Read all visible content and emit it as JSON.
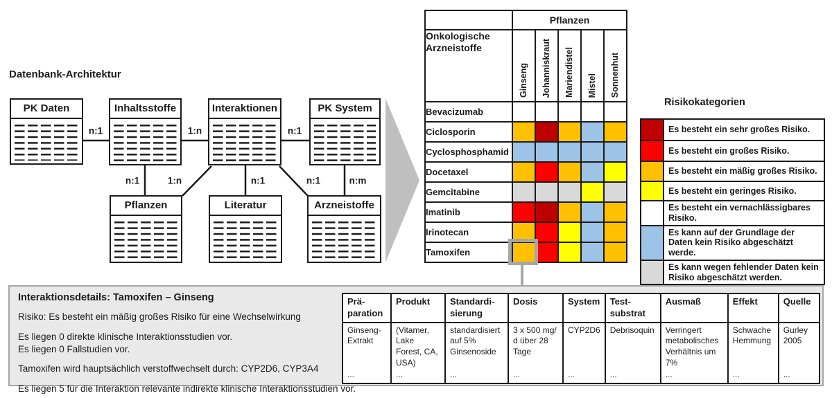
{
  "er_diagram": {
    "title": "Datenbank-Architektur",
    "entities": [
      {
        "id": "pk-daten",
        "label": "PK Daten"
      },
      {
        "id": "inhaltsstoffe",
        "label": "Inhaltsstoffe"
      },
      {
        "id": "interaktionen",
        "label": "Interaktionen"
      },
      {
        "id": "pk-system",
        "label": "PK System"
      },
      {
        "id": "pflanzen",
        "label": "Pflanzen"
      },
      {
        "id": "literatur",
        "label": "Literatur"
      },
      {
        "id": "arzneistoffe",
        "label": "Arzneistoffe"
      }
    ],
    "relations": [
      {
        "from": "PK Daten",
        "to": "Inhaltsstoffe",
        "cardinality": "n:1"
      },
      {
        "from": "Inhaltsstoffe",
        "to": "Interaktionen",
        "cardinality": "1:n"
      },
      {
        "from": "Interaktionen",
        "to": "PK System",
        "cardinality": "n:1"
      },
      {
        "from": "Inhaltsstoffe",
        "to": "Pflanzen",
        "cardinality": "n:1"
      },
      {
        "from": "Interaktionen",
        "to": "Pflanzen",
        "cardinality": "1:n"
      },
      {
        "from": "Interaktionen",
        "to": "Literatur",
        "cardinality": "n:1"
      },
      {
        "from": "Interaktionen",
        "to": "Arzneistoffe",
        "cardinality": "n:1"
      },
      {
        "from": "PK System",
        "to": "Arzneistoffe",
        "cardinality": "n:m"
      }
    ]
  },
  "risk_matrix": {
    "col_group_header": "Pflanzen",
    "row_group_header": "Onkologische Arzneistoffe",
    "columns": [
      "Ginseng",
      "Johanniskraut",
      "Mariendistel",
      "Mistel",
      "Sonnenhut"
    ],
    "rows": [
      {
        "drug": "Bevacizumab",
        "cells": [
          "white",
          "white",
          "white",
          "white",
          "white"
        ]
      },
      {
        "drug": "Ciclosporin",
        "cells": [
          "orange",
          "darkred",
          "orange",
          "blue",
          "orange"
        ]
      },
      {
        "drug": "Cyclosphosphamid",
        "cells": [
          "blue",
          "blue",
          "blue",
          "blue",
          "blue"
        ]
      },
      {
        "drug": "Docetaxel",
        "cells": [
          "orange",
          "red",
          "orange",
          "blue",
          "yellow"
        ]
      },
      {
        "drug": "Gemcitabine",
        "cells": [
          "gray",
          "gray",
          "gray",
          "yellow",
          "gray"
        ]
      },
      {
        "drug": "Imatinib",
        "cells": [
          "red",
          "darkred",
          "orange",
          "blue",
          "orange"
        ]
      },
      {
        "drug": "Irinotecan",
        "cells": [
          "orange",
          "red",
          "yellow",
          "blue",
          "orange"
        ]
      },
      {
        "drug": "Tamoxifen",
        "cells": [
          "orange",
          "red",
          "yellow",
          "blue",
          "orange"
        ]
      }
    ],
    "highlighted_cell": {
      "row": "Tamoxifen",
      "column": "Ginseng"
    }
  },
  "risk_colors": {
    "darkred": "#C00000",
    "red": "#FF0000",
    "orange": "#FFC000",
    "yellow": "#FFFF00",
    "white": "#FFFFFF",
    "blue": "#9DC3E6",
    "gray": "#D9D9D9"
  },
  "ui_colors": {
    "arrow": "#BFBFBF",
    "panel_bg": "#E9E9E9",
    "panel_border": "#A6A6A6",
    "highlight": "#A6A6A6"
  },
  "legend": {
    "title": "Risikokategorien",
    "items": [
      {
        "color": "darkred",
        "label": "Es besteht ein sehr großes Risiko."
      },
      {
        "color": "red",
        "label": "Es besteht ein großes Risiko."
      },
      {
        "color": "orange",
        "label": "Es besteht ein mäßig großes Risiko."
      },
      {
        "color": "yellow",
        "label": "Es besteht ein geringes Risiko."
      },
      {
        "color": "white",
        "label": "Es besteht ein vernachlässigbares Risiko."
      },
      {
        "color": "blue",
        "label": "Es kann auf der Grundlage der Daten kein Risiko abgeschätzt werde."
      },
      {
        "color": "gray",
        "label": "Es kann wegen fehlender Daten kein Risiko abgeschätzt werden."
      }
    ]
  },
  "details_panel": {
    "title": "Interaktionsdetails: Tamoxifen – Ginseng",
    "paragraphs": [
      [
        "Risiko: Es besteht ein mäßig großes Risiko für eine Wechselwirkung"
      ],
      [
        "Es liegen 0 direkte klinische Interaktionsstudien vor.",
        "Es liegen 0 Fallstudien vor."
      ],
      [
        "Tamoxifen wird hauptsächlich verstoffwechselt durch: CYP2D6, CYP3A4"
      ],
      [
        "Es liegen 5 für die Interaktion relevante indirekte klinische Interaktionsstudien vor."
      ]
    ]
  },
  "study_table": {
    "headers": [
      "Prä-\nparation",
      "Produkt",
      "Standardi-\nsierung",
      "Dosis",
      "System",
      "Test-\nsubstrat",
      "Ausmaß",
      "Effekt",
      "Quelle"
    ],
    "row": [
      "Ginseng-Extrakt",
      "(Vitamer, Lake Forest, CA, USA)",
      "standardisiert auf 5% Ginsenoside",
      "3 x 500 mg/ d über 28 Tage",
      "CYP2D6",
      "Debrisoquin",
      "Verringert metabolisches Verhältnis um 7%",
      "Schwache Hemmung",
      "Gurley 2005"
    ],
    "ellipsis_row": [
      "...",
      "...",
      "...",
      "...",
      "...",
      "...",
      "...",
      "...",
      "..."
    ]
  }
}
